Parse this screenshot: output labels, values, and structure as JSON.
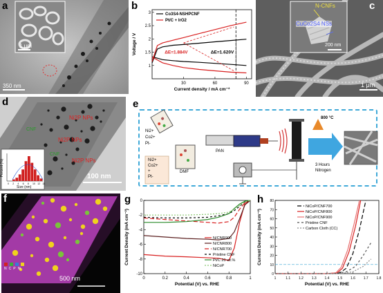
{
  "panels": {
    "a": {
      "label": "a",
      "scale_main": "350 nm",
      "scale_inset": "1 μm"
    },
    "b": {
      "label": "b"
    },
    "c": {
      "label": "c",
      "inset_label_1": "N-CNFs",
      "inset_label_2": "CuCo2S4 NSs",
      "scale_inset": "200 nm",
      "scale_main": "1 μm"
    },
    "d": {
      "label": "d",
      "ann_1": "Ni2P NPs",
      "ann_2": "Ni2P NPs",
      "ann_3": "Ni2P NPs",
      "ann_4": "CNF",
      "ann_5": "CNF",
      "scale": "100 nm",
      "hist_ylabel": "Percent (%)",
      "hist_xlabel": "Size (nm)",
      "hist_xticks": [
        "0",
        "2",
        "4",
        "6",
        "8",
        "10",
        "12",
        "14"
      ]
    },
    "e": {
      "label": "e",
      "ions_1": [
        "Ni2+",
        "Co2+",
        "Pt-"
      ],
      "ions_2": [
        "Ni2+",
        "Co2+",
        "+",
        "Pt-"
      ],
      "dmf": "DMF",
      "pan": "PAN",
      "temp": "800 °C",
      "time": "3 Hours",
      "gas": "Nitrogen"
    },
    "f": {
      "label": "f",
      "scale": "500 nm",
      "legend": [
        "N",
        "C",
        "P",
        "Ni"
      ]
    },
    "g": {
      "label": "g"
    },
    "h": {
      "label": "h"
    }
  },
  "colors": {
    "red": "#d81e1e",
    "ni_green": "#2a8a2a",
    "ni_yellow": "#f0d21e",
    "magenta": "#b63cb8",
    "dash_blue": "#5ab4dc"
  },
  "chart_data": [
    {
      "type": "line",
      "panel": "b",
      "xlabel": "Current density / mA cm⁻²",
      "ylabel": "Voltage / V",
      "xlim": [
        0,
        95
      ],
      "ylim": [
        0.5,
        3.1
      ],
      "xticks": [
        30,
        60,
        90
      ],
      "yticks": [
        1.0,
        1.5,
        2.0,
        2.5,
        3.0
      ],
      "series": [
        {
          "name": "Co3S4-NSHPCNF",
          "color": "#000000",
          "x": [
            0,
            5,
            10,
            20,
            30,
            45,
            60,
            75,
            90
          ],
          "y": [
            1.1,
            1.62,
            1.7,
            1.76,
            1.79,
            1.84,
            1.89,
            1.94,
            1.99
          ]
        },
        {
          "name": "Co3S4-NSHPCNF",
          "color": "#000000",
          "x": [
            0,
            10,
            20,
            30,
            45,
            60,
            75,
            90
          ],
          "y": [
            1.33,
            1.22,
            1.18,
            1.15,
            1.12,
            1.08,
            1.04,
            1.0
          ]
        },
        {
          "name": "Pt/C + IrO2",
          "color": "#d81e1e",
          "x": [
            0,
            5,
            10,
            20,
            30,
            45,
            60,
            75,
            90
          ],
          "y": [
            1.15,
            1.75,
            1.85,
            1.95,
            2.05,
            2.2,
            2.35,
            2.5,
            2.63
          ]
        },
        {
          "name": "Pt/C + IrO2",
          "color": "#d81e1e",
          "x": [
            0,
            10,
            20,
            30,
            45,
            60,
            75,
            90
          ],
          "y": [
            1.32,
            1.1,
            1.0,
            0.92,
            0.85,
            0.8,
            0.75,
            0.72
          ]
        }
      ],
      "annotations": [
        "ΔE=1.884V",
        "ΔE=1.620V"
      ],
      "vline_x": 80
    },
    {
      "type": "line",
      "panel": "g",
      "xlabel": "Potential (V) vs. RHE",
      "ylabel": "Current Density (mA cm⁻²)",
      "xlim": [
        0.0,
        1.0
      ],
      "ylim": [
        -10,
        0
      ],
      "xticks": [
        0.0,
        0.2,
        0.4,
        0.6,
        0.8,
        1.0
      ],
      "yticks": [
        -10,
        -8,
        -6,
        -4,
        -2,
        0
      ],
      "series": [
        {
          "name": "N/CNR900",
          "color": "#d81e1e",
          "dash": "",
          "x": [
            0.0,
            0.2,
            0.4,
            0.55,
            0.7,
            0.8,
            0.85,
            0.9,
            0.95,
            1.0
          ],
          "y": [
            -7.4,
            -7.6,
            -7.7,
            -7.8,
            -7.9,
            -8.2,
            -6.5,
            -3.0,
            -0.4,
            0.0
          ]
        },
        {
          "name": "N/CNR800",
          "color": "#5a1e1e",
          "dash": "",
          "x": [
            0.0,
            0.2,
            0.4,
            0.6,
            0.7,
            0.8,
            0.85,
            0.9,
            0.95,
            1.0
          ],
          "y": [
            -4.8,
            -5.0,
            -5.2,
            -5.3,
            -5.4,
            -5.2,
            -4.3,
            -2.5,
            -0.6,
            0.0
          ]
        },
        {
          "name": "N/CNR700",
          "color": "#d81e1e",
          "dash": "6,3",
          "x": [
            0.0,
            0.2,
            0.4,
            0.6,
            0.7,
            0.8,
            0.85,
            0.9,
            0.95,
            1.0
          ],
          "y": [
            -2.4,
            -2.6,
            -2.8,
            -3.0,
            -3.1,
            -2.9,
            -2.3,
            -1.2,
            -0.3,
            0.0
          ]
        },
        {
          "name": "Pristine CNF",
          "color": "#000000",
          "dash": "3,3",
          "x": [
            0.0,
            0.2,
            0.4,
            0.6,
            0.7,
            0.8,
            0.85,
            0.9,
            0.95,
            1.0
          ],
          "y": [
            -2.3,
            -2.4,
            -2.4,
            -2.3,
            -2.1,
            -1.8,
            -1.4,
            -0.8,
            -0.2,
            0.0
          ]
        },
        {
          "name": "Pt/C 20 wt.%",
          "color": "#2a8a2a",
          "dash": "",
          "x": [
            0.0,
            0.2,
            0.4,
            0.6,
            0.7,
            0.8,
            0.85,
            0.9,
            0.95,
            1.0
          ],
          "y": [
            -3.0,
            -3.0,
            -2.9,
            -2.6,
            -2.3,
            -1.8,
            -1.1,
            -0.5,
            -0.1,
            0.0
          ]
        },
        {
          "name": "NiCoP",
          "color": "#8ac870",
          "dash": "2,2",
          "x": [
            0.0,
            0.2,
            0.4,
            0.6,
            0.7,
            0.8,
            0.85,
            0.9,
            0.95,
            1.0
          ],
          "y": [
            -2.0,
            -2.0,
            -2.0,
            -1.9,
            -1.8,
            -1.6,
            -1.2,
            -0.7,
            -0.2,
            0.0
          ]
        }
      ]
    },
    {
      "type": "line",
      "panel": "h",
      "xlabel": "Potential (V) vs. RHE",
      "ylabel": "Current Density (mA cm⁻²)",
      "xlim": [
        1.0,
        1.8
      ],
      "ylim": [
        0,
        80
      ],
      "xticks": [
        1.0,
        1.1,
        1.2,
        1.3,
        1.4,
        1.5,
        1.6,
        1.7,
        1.8
      ],
      "yticks": [
        0,
        10,
        20,
        30,
        40,
        50,
        60,
        70,
        80
      ],
      "hline_y": 10,
      "series": [
        {
          "name": "NiCoP/CNF700",
          "color": "#000000",
          "dash": "6,3",
          "x": [
            1.0,
            1.4,
            1.5,
            1.55,
            1.6,
            1.65,
            1.7
          ],
          "y": [
            0,
            0,
            1,
            6,
            22,
            48,
            80
          ]
        },
        {
          "name": "NiCoP/CNF800",
          "color": "#d81e1e",
          "dash": "",
          "x": [
            1.0,
            1.4,
            1.48,
            1.52,
            1.57,
            1.62,
            1.66
          ],
          "y": [
            0,
            0,
            1,
            6,
            24,
            52,
            80
          ]
        },
        {
          "name": "NiCoP/CNF900",
          "color": "#e87070",
          "dash": "",
          "x": [
            1.0,
            1.4,
            1.47,
            1.51,
            1.56,
            1.61,
            1.65
          ],
          "y": [
            0,
            0,
            1,
            7,
            26,
            55,
            80
          ]
        },
        {
          "name": "Pristine CNF",
          "color": "#555555",
          "dash": "3,3",
          "x": [
            1.0,
            1.45,
            1.55,
            1.62,
            1.68,
            1.74
          ],
          "y": [
            0,
            0,
            2,
            8,
            20,
            34
          ]
        },
        {
          "name": "Carbon Cloth (CC)",
          "color": "#8a8a8a",
          "dash": "2,2",
          "x": [
            1.0,
            1.5,
            1.6,
            1.68,
            1.74
          ],
          "y": [
            0,
            0,
            2,
            8,
            16
          ]
        }
      ]
    }
  ]
}
